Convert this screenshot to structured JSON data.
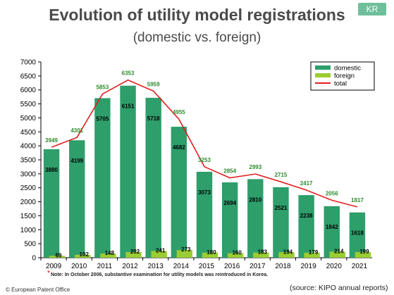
{
  "header": {
    "title": "Evolution of utility model registrations",
    "subtitle": "(domestic vs. foreign)",
    "badge": "KR"
  },
  "footer": {
    "note_star": "*",
    "note": "Note: In October 2006, substantive examination for utility models was reintroduced in Korea.",
    "copyright": "© European Patent Office",
    "source": "(source: KIPO annual reports)"
  },
  "colors": {
    "domestic": "#2e9e6b",
    "foreign": "#9acd32",
    "total": "#e02020",
    "total_label": "#2e8b2e",
    "domestic_label": "#000000",
    "foreign_label": "#000000"
  },
  "chart_data": {
    "type": "bar",
    "categories": [
      "2009",
      "2010",
      "2011",
      "2012",
      "2013",
      "2014",
      "2015",
      "2016",
      "2017",
      "2018",
      "2019",
      "2020",
      "2021"
    ],
    "series": [
      {
        "name": "domestic",
        "type": "bar",
        "values": [
          3880,
          4199,
          5705,
          6151,
          5718,
          4682,
          3073,
          2694,
          2810,
          2521,
          2238,
          1842,
          1618
        ]
      },
      {
        "name": "foreign",
        "type": "bar",
        "values": [
          69,
          102,
          148,
          202,
          241,
          273,
          180,
          160,
          183,
          194,
          179,
          214,
          199
        ]
      },
      {
        "name": "total",
        "type": "line",
        "values": [
          3949,
          4301,
          5853,
          6353,
          5959,
          4955,
          3253,
          2854,
          2993,
          2715,
          2417,
          2056,
          1817
        ]
      }
    ],
    "ylim": [
      0,
      7000
    ],
    "yticks": [
      0,
      500,
      1000,
      1500,
      2000,
      2500,
      3000,
      3500,
      4000,
      4500,
      5000,
      5500,
      6000,
      6500,
      7000
    ],
    "legend": "top-right",
    "grid": false
  }
}
